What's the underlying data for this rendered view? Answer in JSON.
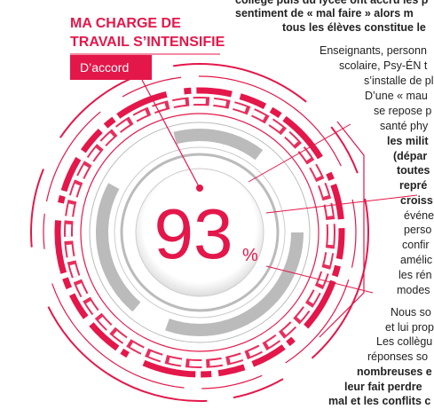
{
  "top_text": [
    "collège puis du lycée ont accru les p",
    "sentiment de « mal faire » alors m",
    "tous les élèves constitue le"
  ],
  "infographic": {
    "title_lines": [
      "MA CHARGE DE",
      "TRAVAIL S’INTENSIFIE"
    ],
    "label": "D’accord",
    "value": 93,
    "unit": "%"
  },
  "body_lines": [
    "Enseignants, personn",
    "scolaire, Psy-ÉN t",
    "s’installe de plu",
    "D’une « mau",
    "se repose p",
    "santé phy",
    "les milit",
    "(dépar",
    "toutes",
    "repré",
    "croiss",
    "événe",
    "perso",
    "confir",
    "amélic",
    "les rén",
    "modes",
    "Nous so",
    "et lui prop",
    "Les collègu",
    "réponses so",
    "nombreuses e",
    "leur fait perdre",
    "mal et les conflits c"
  ]
}
